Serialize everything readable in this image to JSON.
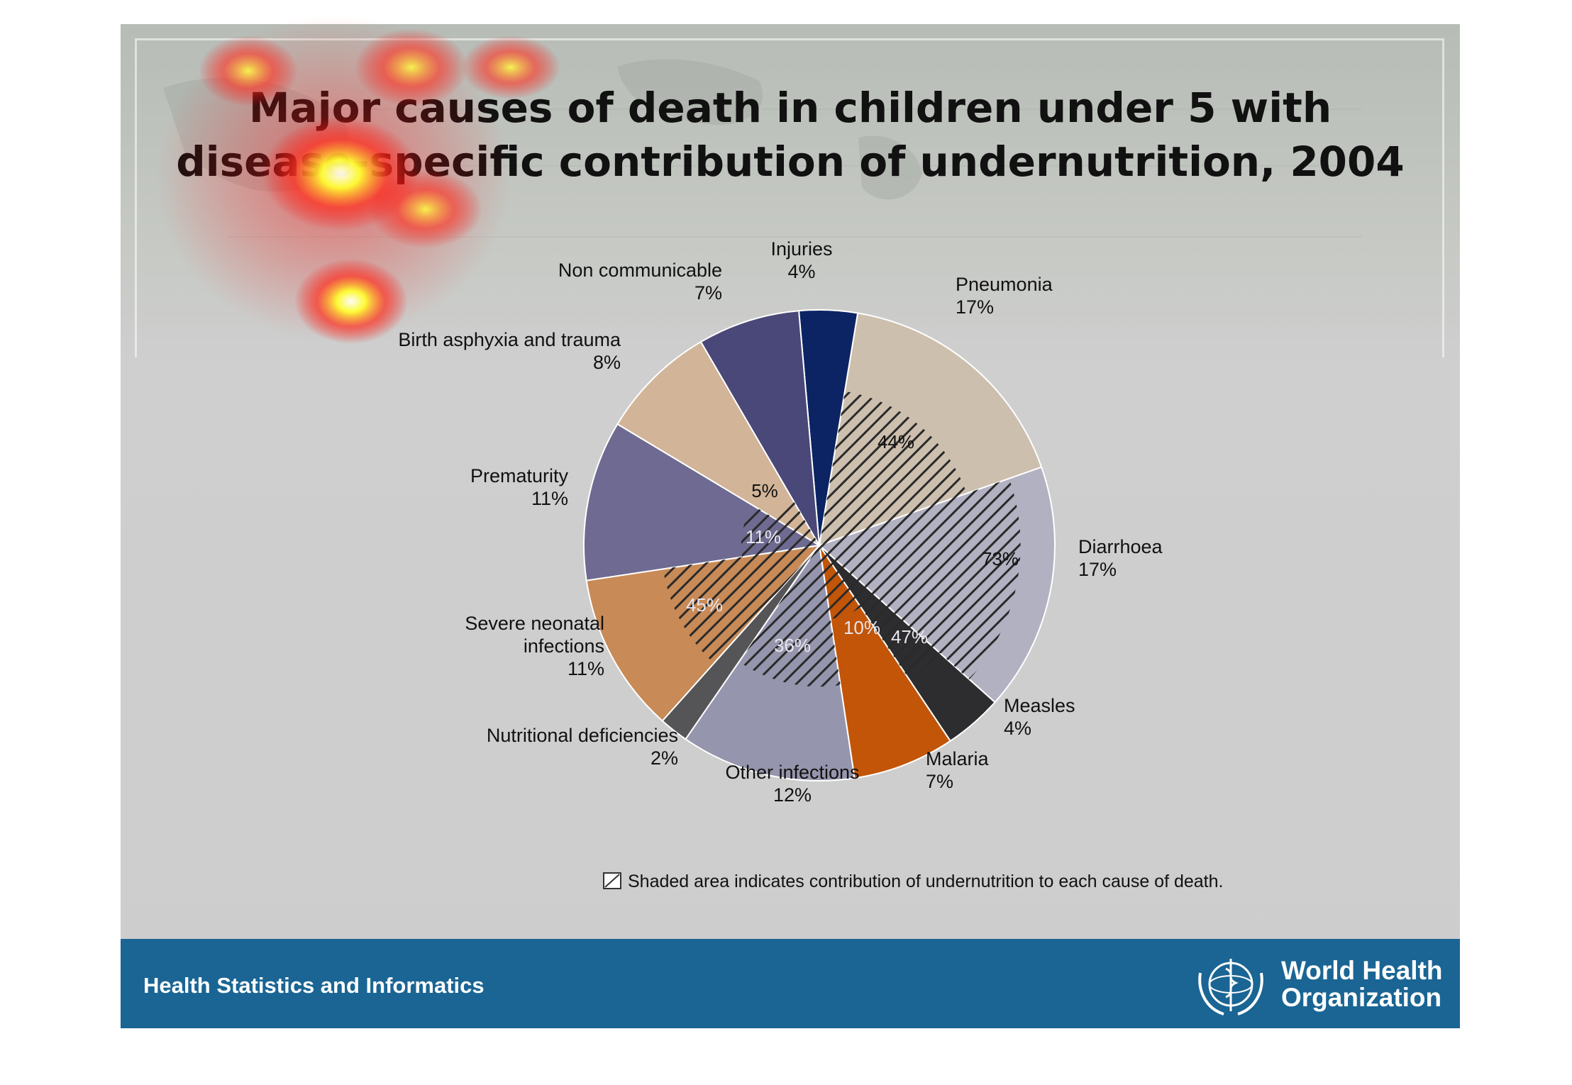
{
  "chart_data": {
    "type": "pie",
    "title": "Major causes of death in children under 5 with disease-specific contribution of undernutrition, 2004",
    "title_lines": [
      "Major causes of death in children under 5 with",
      "disease-specific contribution of undernutrition, 2004"
    ],
    "slices": [
      {
        "name": "Injuries",
        "label": "4%",
        "value": 4,
        "color": "#0c2463",
        "undernutrition": ""
      },
      {
        "name": "Pneumonia",
        "label": "17%",
        "value": 17,
        "color": "#cdbfae",
        "undernutrition": "44%"
      },
      {
        "name": "Diarrhoea",
        "label": "17%",
        "value": 17,
        "color": "#b2b1c2",
        "undernutrition": "73%"
      },
      {
        "name": "Measles",
        "label": "4%",
        "value": 4,
        "color": "#2d2d30",
        "undernutrition": "47%"
      },
      {
        "name": "Malaria",
        "label": "7%",
        "value": 7,
        "color": "#c25508",
        "undernutrition": "10%"
      },
      {
        "name": "Other infections",
        "label": "12%",
        "value": 12,
        "color": "#9595ad",
        "undernutrition": "36%"
      },
      {
        "name": "Nutritional deficiencies",
        "label": "2%",
        "value": 2,
        "color": "#555558",
        "undernutrition": ""
      },
      {
        "name": "Severe neonatal infections",
        "label": "11%",
        "value": 11,
        "color": "#c88a56",
        "undernutrition": "45%"
      },
      {
        "name": "Prematurity",
        "label": "11%",
        "value": 11,
        "color": "#6e6a91",
        "undernutrition": "11%"
      },
      {
        "name": "Birth asphyxia and trauma",
        "label": "8%",
        "value": 8,
        "color": "#d2b498",
        "undernutrition": "5%"
      },
      {
        "name": "Non communicable",
        "label": "7%",
        "value": 7,
        "color": "#4a4878",
        "undernutrition": ""
      }
    ],
    "legend": "Shaded area indicates contribution of undernutrition to each cause of death."
  },
  "footer": {
    "text": "Health Statistics and Informatics",
    "logo_line1": "World Health",
    "logo_line2": "Organization"
  }
}
